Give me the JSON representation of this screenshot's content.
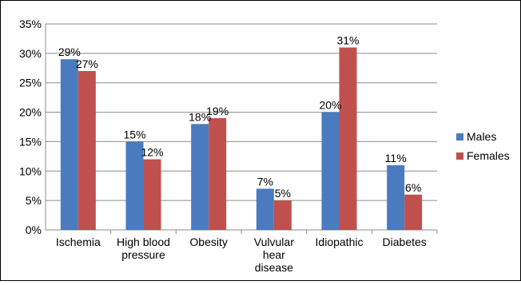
{
  "chart_data": {
    "type": "bar",
    "title": "",
    "xlabel": "",
    "ylabel": "",
    "categories": [
      [
        "Ischemia"
      ],
      [
        "High blood",
        "pressure"
      ],
      [
        "Obesity"
      ],
      [
        "Vulvular",
        "hear",
        "disease"
      ],
      [
        "Idiopathic"
      ],
      [
        "Diabetes"
      ]
    ],
    "series": [
      {
        "name": "Males",
        "color": "#4a7bbf",
        "values": [
          29,
          15,
          18,
          7,
          20,
          11
        ]
      },
      {
        "name": "Females",
        "color": "#c0504d",
        "values": [
          27,
          12,
          19,
          5,
          31,
          6
        ]
      }
    ],
    "ylim": [
      0,
      35
    ],
    "yticks": [
      0,
      5,
      10,
      15,
      20,
      25,
      30,
      35
    ],
    "value_format": "percent",
    "grid": true,
    "legend_position": "right"
  }
}
